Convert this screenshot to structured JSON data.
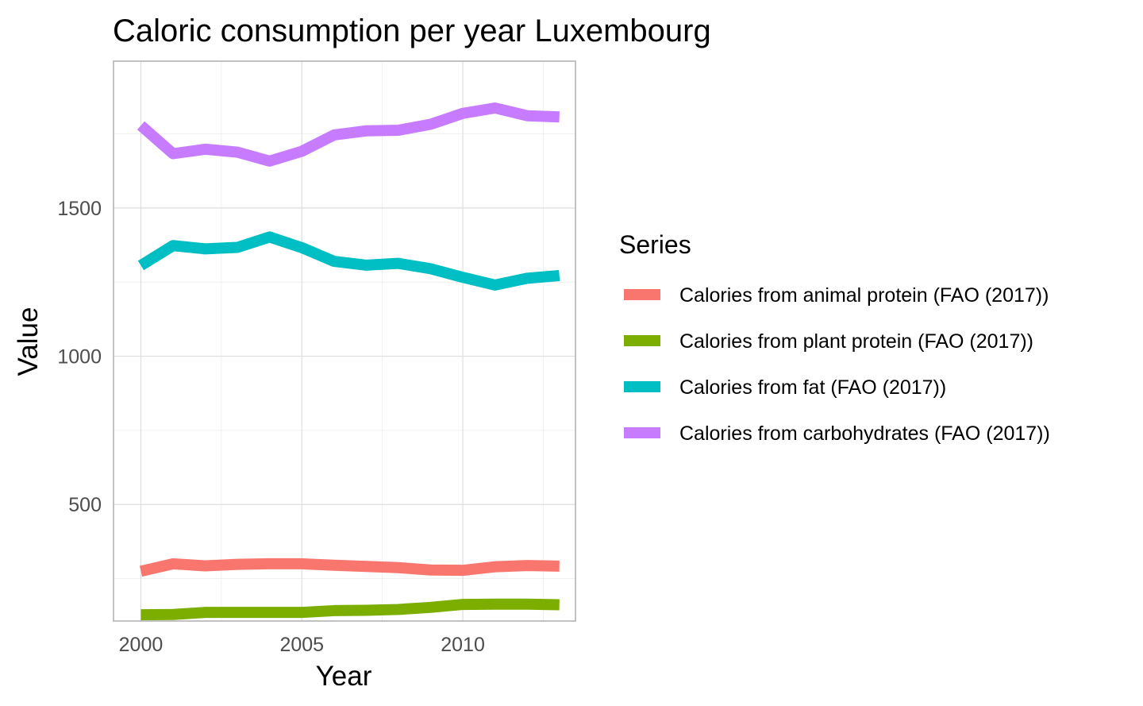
{
  "chart_data": {
    "type": "line",
    "title": "Caloric consumption per year Luxembourg",
    "xlabel": "Year",
    "ylabel": "Value",
    "xlim": [
      1999.15,
      2013.5
    ],
    "ylim": [
      107,
      1995
    ],
    "x_ticks": [
      2000,
      2005,
      2010
    ],
    "y_ticks": [
      500,
      1000,
      1500
    ],
    "grid": true,
    "legend": {
      "title": "Series",
      "position": "right"
    },
    "x": [
      2000,
      2001,
      2002,
      2003,
      2004,
      2005,
      2006,
      2007,
      2008,
      2009,
      2010,
      2011,
      2012,
      2013
    ],
    "series": [
      {
        "name": "Calories from animal protein (FAO (2017))",
        "color": "#F8766D",
        "values": [
          275,
          300,
          293,
          298,
          300,
          300,
          295,
          291,
          287,
          279,
          278,
          290,
          294,
          292
        ]
      },
      {
        "name": "Calories from plant protein (FAO (2017))",
        "color": "#7CAE00",
        "values": [
          128,
          129,
          136,
          136,
          136,
          136,
          142,
          143,
          146,
          153,
          163,
          164,
          164,
          162
        ]
      },
      {
        "name": "Calories from fat (FAO (2017))",
        "color": "#00BFC4",
        "values": [
          1306,
          1373,
          1362,
          1367,
          1402,
          1366,
          1320,
          1307,
          1313,
          1295,
          1266,
          1240,
          1263,
          1272
        ]
      },
      {
        "name": "Calories from carbohydrates (FAO (2017))",
        "color": "#C77CFF",
        "values": [
          1778,
          1683,
          1698,
          1688,
          1658,
          1691,
          1746,
          1760,
          1762,
          1782,
          1819,
          1837,
          1811,
          1807
        ]
      }
    ]
  }
}
